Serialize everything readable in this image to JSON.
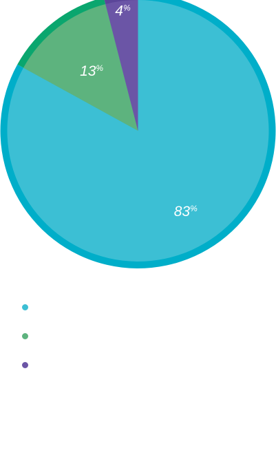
{
  "chart_data": {
    "type": "pie",
    "slices": [
      {
        "label": "",
        "value": 83,
        "display": "83",
        "unit": "%",
        "color": "#3cbfd4",
        "edge_color": "#00aec9"
      },
      {
        "label": "",
        "value": 13,
        "display": "13",
        "unit": "%",
        "color": "#5db37e",
        "edge_color": "#0aa66e"
      },
      {
        "label": "",
        "value": 4,
        "display": "4",
        "unit": "%",
        "color": "#6b55a6",
        "edge_color": "#5b4599"
      }
    ],
    "legend": {
      "placement": "bottom-left",
      "entries": [
        {
          "text": "",
          "color": "#3cbfd4"
        },
        {
          "text": "",
          "color": "#5db37e"
        },
        {
          "text": "",
          "color": "#6b55a6"
        }
      ]
    }
  }
}
